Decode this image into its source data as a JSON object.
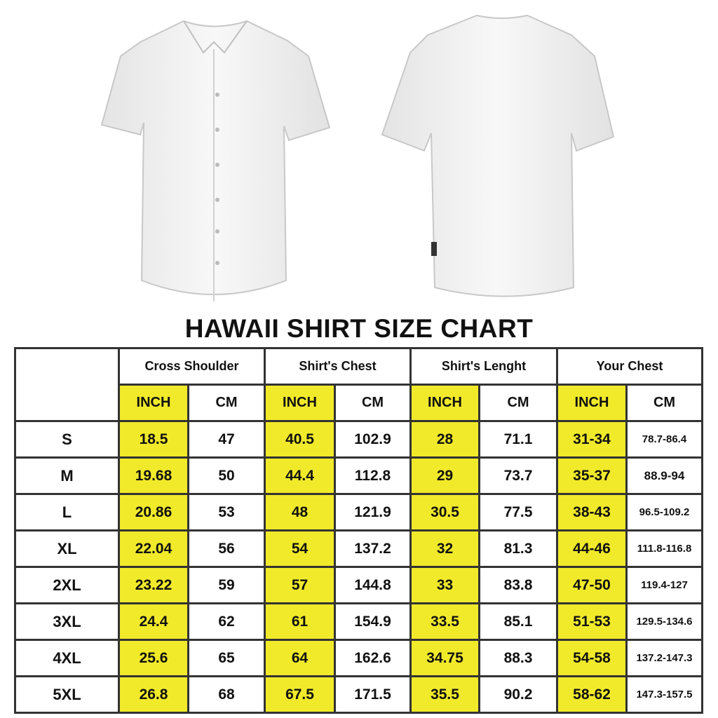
{
  "title": "HAWAII SHIRT SIZE CHART",
  "colors": {
    "inch_highlight": "#f1ea2a",
    "border": "#333333",
    "shirt": "#f2f2f2"
  },
  "images": [
    "shirt-front",
    "shirt-back"
  ],
  "table": {
    "groups": [
      "Cross Shoulder",
      "Shirt's Chest",
      "Shirt's Lenght",
      "Your Chest"
    ],
    "units": [
      "INCH",
      "CM"
    ],
    "rows": [
      {
        "size": "S",
        "values": [
          "18.5",
          "47",
          "40.5",
          "102.9",
          "28",
          "71.1",
          "31-34",
          "78.7-86.4"
        ]
      },
      {
        "size": "M",
        "values": [
          "19.68",
          "50",
          "44.4",
          "112.8",
          "29",
          "73.7",
          "35-37",
          "88.9-94"
        ]
      },
      {
        "size": "L",
        "values": [
          "20.86",
          "53",
          "48",
          "121.9",
          "30.5",
          "77.5",
          "38-43",
          "96.5-109.2"
        ]
      },
      {
        "size": "XL",
        "values": [
          "22.04",
          "56",
          "54",
          "137.2",
          "32",
          "81.3",
          "44-46",
          "111.8-116.8"
        ]
      },
      {
        "size": "2XL",
        "values": [
          "23.22",
          "59",
          "57",
          "144.8",
          "33",
          "83.8",
          "47-50",
          "119.4-127"
        ]
      },
      {
        "size": "3XL",
        "values": [
          "24.4",
          "62",
          "61",
          "154.9",
          "33.5",
          "85.1",
          "51-53",
          "129.5-134.6"
        ]
      },
      {
        "size": "4XL",
        "values": [
          "25.6",
          "65",
          "64",
          "162.6",
          "34.75",
          "88.3",
          "54-58",
          "137.2-147.3"
        ]
      },
      {
        "size": "5XL",
        "values": [
          "26.8",
          "68",
          "67.5",
          "171.5",
          "35.5",
          "90.2",
          "58-62",
          "147.3-157.5"
        ]
      }
    ]
  }
}
